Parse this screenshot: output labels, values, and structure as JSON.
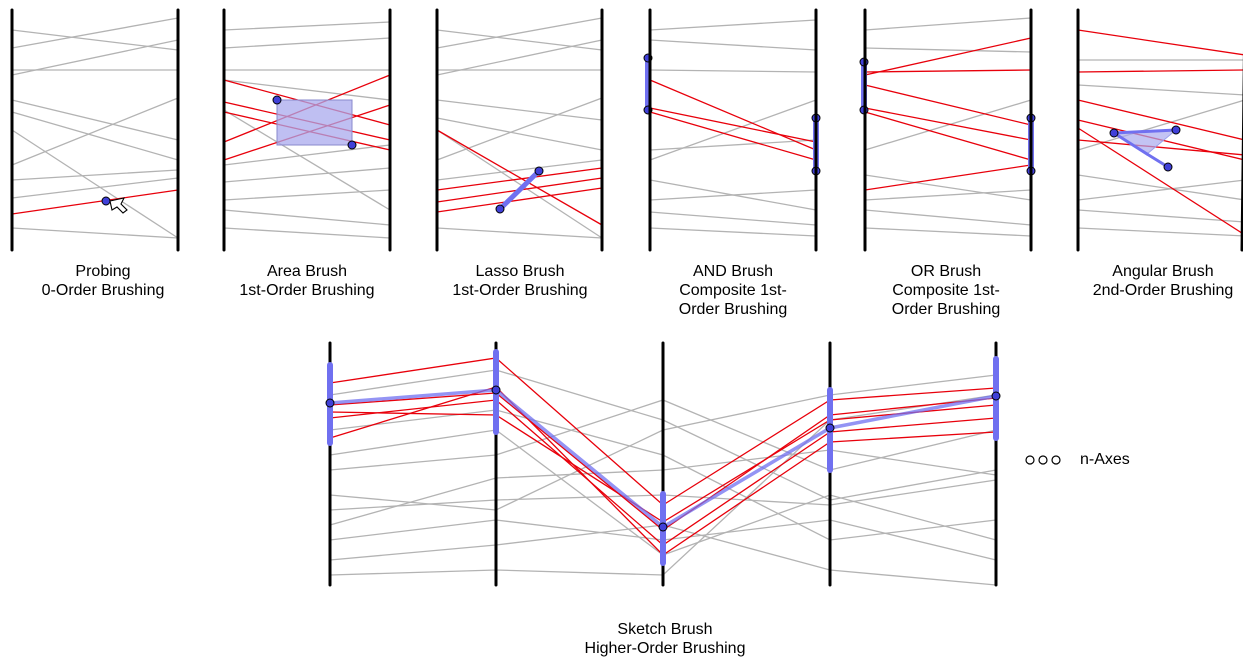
{
  "panels": [
    {
      "id": "probing",
      "title": "Probing",
      "subtitle": [
        "0-Order Brushing"
      ]
    },
    {
      "id": "area",
      "title": "Area Brush",
      "subtitle": [
        "1st-Order Brushing"
      ]
    },
    {
      "id": "lasso",
      "title": "Lasso Brush",
      "subtitle": [
        "1st-Order Brushing"
      ]
    },
    {
      "id": "and",
      "title": "AND Brush",
      "subtitle": [
        "Composite 1st-",
        "Order Brushing"
      ]
    },
    {
      "id": "or",
      "title": "OR Brush",
      "subtitle": [
        "Composite 1st-",
        "Order Brushing"
      ]
    },
    {
      "id": "angular",
      "title": "Angular Brush",
      "subtitle": [
        "2nd-Order Brushing"
      ]
    }
  ],
  "sketch": {
    "title": "Sketch Brush",
    "subtitle": "Higher-Order Brushing"
  },
  "more_axes_label": "n-Axes",
  "colors": {
    "axis": "#000000",
    "context_line": "#b3b3b3",
    "selected_line": "#e8000b",
    "brush": "#7070f0",
    "handle_fill": "#4040d8",
    "area_fill": "#aaaaee"
  }
}
